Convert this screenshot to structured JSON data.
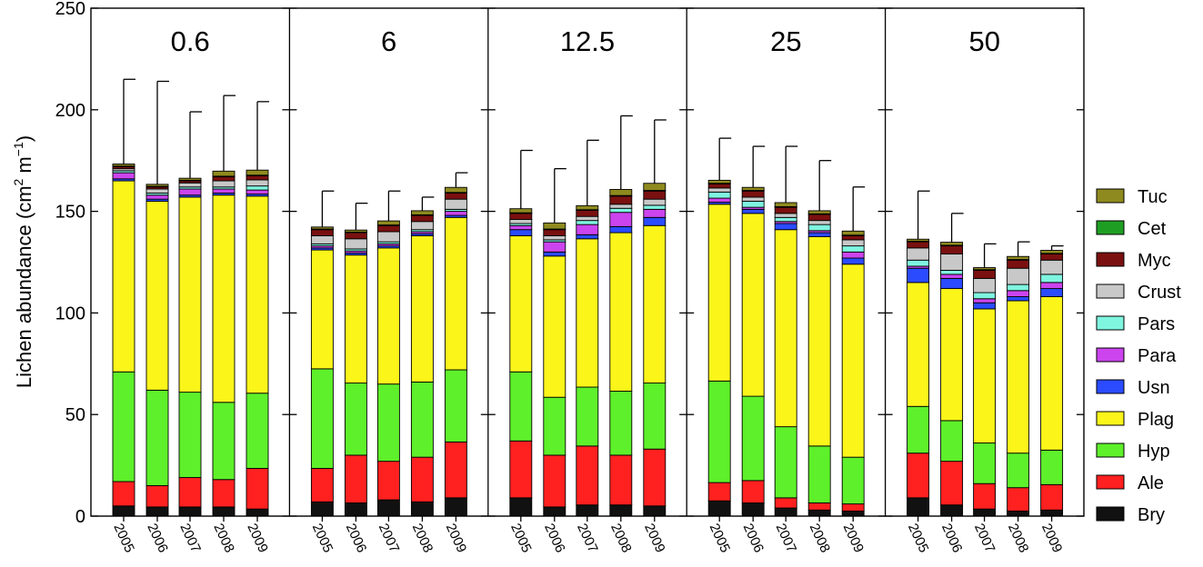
{
  "chart_data": {
    "type": "bar",
    "stacked": true,
    "ylabel_main": "Lichen abundance (cm",
    "ylabel_sup1": "2",
    "ylabel_mid": " m",
    "ylabel_sup2": "−1",
    "ylabel_end": ")",
    "ylim": [
      0,
      250
    ],
    "yticks": [
      "0",
      "50",
      "100",
      "150",
      "200",
      "250"
    ],
    "years": [
      "2005",
      "2006",
      "2007",
      "2008",
      "2009"
    ],
    "legend_position": "right",
    "categories_order": [
      "Bry",
      "Ale",
      "Hyp",
      "Plag",
      "Usn",
      "Para",
      "Pars",
      "Crust",
      "Myc",
      "Cet",
      "Tuc"
    ],
    "colors": {
      "Bry": "#111111",
      "Ale": "#ff2020",
      "Hyp": "#5ef02a",
      "Plag": "#fcf51a",
      "Usn": "#2b4bff",
      "Para": "#cc44ee",
      "Pars": "#7ff5e0",
      "Crust": "#c8c8c8",
      "Myc": "#7a1010",
      "Cet": "#1f9e24",
      "Tuc": "#8f8a1f"
    },
    "legend": [
      "Tuc",
      "Cet",
      "Myc",
      "Crust",
      "Pars",
      "Para",
      "Usn",
      "Plag",
      "Hyp",
      "Ale",
      "Bry"
    ],
    "panels": [
      {
        "label": "0.6",
        "bars": [
          {
            "year": "2005",
            "errorTop": 215,
            "values": {
              "Bry": 5,
              "Ale": 12,
              "Hyp": 54,
              "Plag": 94,
              "Usn": 1,
              "Para": 3,
              "Pars": 1,
              "Crust": 1,
              "Myc": 1,
              "Cet": 0.3,
              "Tuc": 1
            }
          },
          {
            "year": "2006",
            "errorTop": 214,
            "values": {
              "Bry": 4.5,
              "Ale": 10.5,
              "Hyp": 47,
              "Plag": 93,
              "Usn": 1,
              "Para": 2,
              "Pars": 1,
              "Crust": 2,
              "Myc": 1,
              "Cet": 0.3,
              "Tuc": 1
            }
          },
          {
            "year": "2007",
            "errorTop": 199,
            "values": {
              "Bry": 4.5,
              "Ale": 14.5,
              "Hyp": 42,
              "Plag": 96,
              "Usn": 1,
              "Para": 3,
              "Pars": 1,
              "Crust": 2,
              "Myc": 1,
              "Cet": 0.3,
              "Tuc": 1
            }
          },
          {
            "year": "2008",
            "errorTop": 207,
            "values": {
              "Bry": 4.5,
              "Ale": 13.5,
              "Hyp": 38,
              "Plag": 102,
              "Usn": 1,
              "Para": 2,
              "Pars": 1,
              "Crust": 3,
              "Myc": 2,
              "Cet": 0.3,
              "Tuc": 2.5
            }
          },
          {
            "year": "2009",
            "errorTop": 204,
            "values": {
              "Bry": 3.5,
              "Ale": 20,
              "Hyp": 37,
              "Plag": 97,
              "Usn": 1,
              "Para": 2,
              "Pars": 2,
              "Crust": 3,
              "Myc": 2,
              "Cet": 0.3,
              "Tuc": 2.5
            }
          }
        ]
      },
      {
        "label": "6",
        "bars": [
          {
            "year": "2005",
            "errorTop": 160,
            "values": {
              "Bry": 7,
              "Ale": 16.5,
              "Hyp": 49,
              "Plag": 58.5,
              "Usn": 1,
              "Para": 1,
              "Pars": 1,
              "Crust": 4,
              "Myc": 3,
              "Cet": 0.3,
              "Tuc": 1
            }
          },
          {
            "year": "2006",
            "errorTop": 154,
            "values": {
              "Bry": 6.5,
              "Ale": 23.5,
              "Hyp": 35.5,
              "Plag": 63,
              "Usn": 1,
              "Para": 1,
              "Pars": 1,
              "Crust": 5,
              "Myc": 3,
              "Cet": 0.3,
              "Tuc": 1
            }
          },
          {
            "year": "2007",
            "errorTop": 160,
            "values": {
              "Bry": 8,
              "Ale": 19,
              "Hyp": 38,
              "Plag": 67,
              "Usn": 1,
              "Para": 1,
              "Pars": 1,
              "Crust": 5,
              "Myc": 3,
              "Cet": 0.3,
              "Tuc": 2
            }
          },
          {
            "year": "2008",
            "errorTop": 157,
            "values": {
              "Bry": 7,
              "Ale": 22,
              "Hyp": 37,
              "Plag": 72,
              "Usn": 1,
              "Para": 1,
              "Pars": 1,
              "Crust": 4,
              "Myc": 3,
              "Cet": 0.3,
              "Tuc": 2
            }
          },
          {
            "year": "2009",
            "errorTop": 169,
            "values": {
              "Bry": 9,
              "Ale": 27.5,
              "Hyp": 35.5,
              "Plag": 75,
              "Usn": 1,
              "Para": 2,
              "Pars": 1,
              "Crust": 5,
              "Myc": 3,
              "Cet": 0.3,
              "Tuc": 2.5
            }
          }
        ]
      },
      {
        "label": "12.5",
        "bars": [
          {
            "year": "2005",
            "errorTop": 180,
            "values": {
              "Bry": 9,
              "Ale": 28,
              "Hyp": 34,
              "Plag": 67,
              "Usn": 3,
              "Para": 2,
              "Pars": 1,
              "Crust": 2,
              "Myc": 3,
              "Cet": 0.3,
              "Tuc": 2
            }
          },
          {
            "year": "2006",
            "errorTop": 171,
            "values": {
              "Bry": 4.5,
              "Ale": 25.5,
              "Hyp": 28.5,
              "Plag": 69.5,
              "Usn": 2,
              "Para": 5,
              "Pars": 1,
              "Crust": 2,
              "Myc": 3,
              "Cet": 0.3,
              "Tuc": 3
            }
          },
          {
            "year": "2007",
            "errorTop": 185,
            "values": {
              "Bry": 5.5,
              "Ale": 29,
              "Hyp": 29,
              "Plag": 73,
              "Usn": 2,
              "Para": 5,
              "Pars": 2,
              "Crust": 2,
              "Myc": 3,
              "Cet": 0.3,
              "Tuc": 2
            }
          },
          {
            "year": "2008",
            "errorTop": 197,
            "values": {
              "Bry": 5.5,
              "Ale": 24.5,
              "Hyp": 31.5,
              "Plag": 78,
              "Usn": 3,
              "Para": 7,
              "Pars": 2,
              "Crust": 2,
              "Myc": 4,
              "Cet": 0.3,
              "Tuc": 3
            }
          },
          {
            "year": "2009",
            "errorTop": 195,
            "values": {
              "Bry": 5,
              "Ale": 28,
              "Hyp": 32.5,
              "Plag": 77.5,
              "Usn": 4,
              "Para": 4,
              "Pars": 2,
              "Crust": 3,
              "Myc": 4,
              "Cet": 0.3,
              "Tuc": 3.5
            }
          }
        ]
      },
      {
        "label": "25",
        "bars": [
          {
            "year": "2005",
            "errorTop": 186,
            "values": {
              "Bry": 7.5,
              "Ale": 9,
              "Hyp": 50,
              "Plag": 87,
              "Usn": 1,
              "Para": 2,
              "Pars": 3,
              "Crust": 2,
              "Myc": 2,
              "Cet": 0.3,
              "Tuc": 1.5
            }
          },
          {
            "year": "2006",
            "errorTop": 182,
            "values": {
              "Bry": 6.5,
              "Ale": 11,
              "Hyp": 41.5,
              "Plag": 90,
              "Usn": 2,
              "Para": 1,
              "Pars": 3,
              "Crust": 2,
              "Myc": 3,
              "Cet": 0.3,
              "Tuc": 1.5
            }
          },
          {
            "year": "2007",
            "errorTop": 182,
            "values": {
              "Bry": 4,
              "Ale": 5,
              "Hyp": 35,
              "Plag": 97,
              "Usn": 3,
              "Para": 1,
              "Pars": 2,
              "Crust": 2,
              "Myc": 3,
              "Cet": 0.3,
              "Tuc": 2
            }
          },
          {
            "year": "2008",
            "errorTop": 175,
            "values": {
              "Bry": 3,
              "Ale": 3.5,
              "Hyp": 28,
              "Plag": 103,
              "Usn": 2,
              "Para": 1,
              "Pars": 3,
              "Crust": 2,
              "Myc": 3,
              "Cet": 0.3,
              "Tuc": 1.5
            }
          },
          {
            "year": "2009",
            "errorTop": 162,
            "values": {
              "Bry": 2.5,
              "Ale": 3.5,
              "Hyp": 23,
              "Plag": 95,
              "Usn": 3,
              "Para": 3,
              "Pars": 3,
              "Crust": 3,
              "Myc": 2,
              "Cet": 0.3,
              "Tuc": 2
            }
          }
        ]
      },
      {
        "label": "50",
        "bars": [
          {
            "year": "2005",
            "errorTop": 160,
            "values": {
              "Bry": 9,
              "Ale": 22,
              "Hyp": 23,
              "Plag": 61,
              "Usn": 7,
              "Para": 1,
              "Pars": 3,
              "Crust": 6,
              "Myc": 3,
              "Cet": 0.3,
              "Tuc": 1
            }
          },
          {
            "year": "2006",
            "errorTop": 149,
            "values": {
              "Bry": 5.5,
              "Ale": 21.5,
              "Hyp": 20,
              "Plag": 65,
              "Usn": 5,
              "Para": 2,
              "Pars": 2,
              "Crust": 8,
              "Myc": 4,
              "Cet": 0.3,
              "Tuc": 1.5
            }
          },
          {
            "year": "2007",
            "errorTop": 134,
            "values": {
              "Bry": 3.5,
              "Ale": 12.5,
              "Hyp": 20,
              "Plag": 66,
              "Usn": 3,
              "Para": 2,
              "Pars": 3,
              "Crust": 7,
              "Myc": 4,
              "Cet": 0.3,
              "Tuc": 1
            }
          },
          {
            "year": "2008",
            "errorTop": 135,
            "values": {
              "Bry": 2.5,
              "Ale": 11.5,
              "Hyp": 17,
              "Plag": 75,
              "Usn": 2,
              "Para": 3,
              "Pars": 3,
              "Crust": 8,
              "Myc": 4,
              "Cet": 0.3,
              "Tuc": 1.5
            }
          },
          {
            "year": "2009",
            "errorTop": 133,
            "values": {
              "Bry": 3,
              "Ale": 12.5,
              "Hyp": 17,
              "Plag": 75.5,
              "Usn": 4,
              "Para": 3,
              "Pars": 4,
              "Crust": 7,
              "Myc": 3,
              "Cet": 0.3,
              "Tuc": 1.5
            }
          }
        ]
      }
    ]
  }
}
